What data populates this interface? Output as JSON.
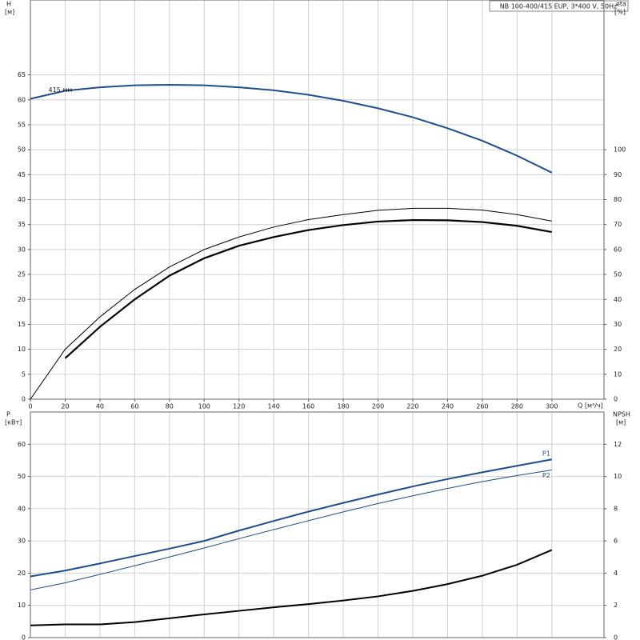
{
  "chart_data": [
    {
      "type": "line",
      "title": "NB 100-400/415 EUP, 3*400 V, 50Hz",
      "y_label": "H",
      "y_unit": "[м]",
      "y2_label": "eta",
      "y2_unit": "[%]",
      "x_label": "Q [м³/ч]",
      "x": [
        0,
        20,
        40,
        60,
        80,
        100,
        120,
        140,
        160,
        180,
        200,
        220,
        240,
        260,
        280,
        300
      ],
      "series": [
        {
          "name": "415 мм",
          "color": "#1f4e8c",
          "width": 2,
          "values": [
            60.2,
            61.8,
            62.5,
            62.9,
            63.0,
            62.9,
            62.5,
            61.9,
            61.0,
            59.8,
            58.3,
            56.5,
            54.3,
            51.8,
            48.8,
            45.4
          ]
        },
        {
          "color": "#000000",
          "width": 1,
          "axis": "y2",
          "values": [
            0,
            20,
            33,
            44,
            53,
            60,
            65,
            69,
            72,
            74,
            75.7,
            76.5,
            76.5,
            75.8,
            74,
            71.4
          ]
        },
        {
          "color": "#000000",
          "width": 2.2,
          "axis": "y2",
          "values": [
            null,
            16.4,
            29,
            40,
            49.5,
            56.5,
            61.5,
            65,
            67.8,
            69.8,
            71.2,
            71.8,
            71.7,
            71,
            69.5,
            67
          ]
        }
      ],
      "xlim": [
        0,
        330
      ],
      "xticks": [
        0,
        20,
        40,
        60,
        80,
        100,
        120,
        140,
        160,
        180,
        200,
        220,
        240,
        260,
        280,
        300
      ],
      "ylim": [
        0,
        80
      ],
      "yticks": [
        0,
        5,
        10,
        15,
        20,
        25,
        30,
        35,
        40,
        45,
        50,
        55,
        60,
        65
      ],
      "y2lim": [
        0,
        160
      ],
      "y2ticks": [
        0,
        10,
        20,
        30,
        40,
        50,
        60,
        70,
        80,
        90,
        100
      ],
      "grid": true
    },
    {
      "type": "line",
      "y_label": "P",
      "y_unit": "[кВт]",
      "y2_label": "NPSH",
      "y2_unit": "[м]",
      "x": [
        0,
        20,
        40,
        60,
        80,
        100,
        120,
        140,
        160,
        180,
        200,
        220,
        240,
        260,
        280,
        300
      ],
      "series": [
        {
          "name": "P1",
          "color": "#1f4e8c",
          "width": 2,
          "values": [
            19,
            20.8,
            23,
            25.3,
            27.6,
            30,
            33.2,
            36.2,
            39.1,
            41.8,
            44.4,
            46.9,
            49.2,
            51.3,
            53.3,
            55.3
          ]
        },
        {
          "name": "P2",
          "color": "#1f4e8c",
          "width": 1,
          "values": [
            14.8,
            17,
            19.6,
            22.3,
            25,
            27.8,
            30.7,
            33.5,
            36.3,
            39,
            41.6,
            44,
            46.3,
            48.4,
            50.3,
            52
          ]
        },
        {
          "color": "#000000",
          "width": 2,
          "axis": "y2",
          "values": [
            0.76,
            0.82,
            0.82,
            0.96,
            1.2,
            1.44,
            1.66,
            1.88,
            2.08,
            2.3,
            2.56,
            2.9,
            3.32,
            3.84,
            4.52,
            5.44
          ]
        }
      ],
      "xlim": [
        0,
        330
      ],
      "xticks": [
        0,
        20,
        40,
        60,
        80,
        100,
        120,
        140,
        160,
        180,
        200,
        220,
        240,
        260,
        280,
        300
      ],
      "ylim": [
        0,
        70
      ],
      "yticks": [
        0,
        10,
        20,
        30,
        40,
        50,
        60
      ],
      "y2lim": [
        0,
        14
      ],
      "y2ticks": [
        0,
        2,
        4,
        6,
        8,
        10,
        12
      ],
      "grid": true
    }
  ]
}
